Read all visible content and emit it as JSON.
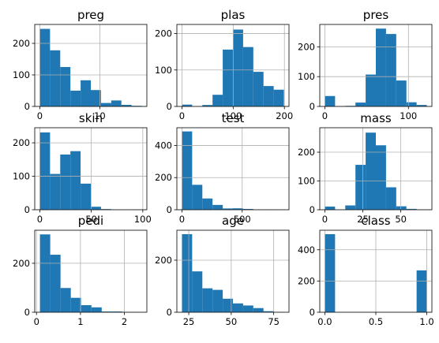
{
  "colors": {
    "bar": "#1f77b4",
    "grid": "#b0b0b0",
    "background": "#ffffff"
  },
  "chart_data": [
    {
      "type": "bar",
      "title": "preg",
      "grid": true,
      "xlim": [
        -0.85,
        17.85
      ],
      "ylim": [
        0,
        260
      ],
      "bin_edges": [
        0,
        1.7,
        3.4,
        5.1,
        6.8,
        8.5,
        10.2,
        11.9,
        13.6,
        15.3,
        17
      ],
      "values": [
        246,
        178,
        125,
        50,
        83,
        52,
        11,
        19,
        5,
        2
      ],
      "xticks": [
        0,
        10
      ],
      "xtick_labels": [
        "0",
        "10"
      ],
      "yticks": [
        0,
        100,
        200
      ],
      "ytick_labels": [
        "0",
        "100",
        "200"
      ]
    },
    {
      "type": "bar",
      "title": "plas",
      "grid": true,
      "xlim": [
        -9.95,
        208.95
      ],
      "ylim": [
        0,
        225
      ],
      "bin_edges": [
        0,
        19.9,
        39.8,
        59.7,
        79.6,
        99.5,
        119.4,
        139.3,
        159.2,
        179.1,
        199
      ],
      "values": [
        5,
        0,
        4,
        32,
        156,
        211,
        163,
        95,
        56,
        46
      ],
      "xticks": [
        0,
        100,
        200
      ],
      "xtick_labels": [
        "0",
        "100",
        "200"
      ],
      "yticks": [
        0,
        100,
        200
      ],
      "ytick_labels": [
        "0",
        "100",
        "200"
      ]
    },
    {
      "type": "bar",
      "title": "pres",
      "grid": true,
      "xlim": [
        -6.1,
        128.1
      ],
      "ylim": [
        0,
        275
      ],
      "bin_edges": [
        0,
        12.2,
        24.4,
        36.6,
        48.8,
        61,
        73.2,
        85.4,
        97.6,
        109.8,
        122
      ],
      "values": [
        35,
        1,
        2,
        13,
        107,
        261,
        243,
        87,
        14,
        5
      ],
      "xticks": [
        0,
        100
      ],
      "xtick_labels": [
        "0",
        "100"
      ],
      "yticks": [
        0,
        100,
        200
      ],
      "ytick_labels": [
        "0",
        "100",
        "200"
      ]
    },
    {
      "type": "bar",
      "title": "skin",
      "grid": true,
      "xlim": [
        -4.95,
        103.95
      ],
      "ylim": [
        0,
        245
      ],
      "bin_edges": [
        0,
        9.9,
        19.8,
        29.7,
        39.6,
        49.5,
        59.4,
        69.3,
        79.2,
        89.1,
        99
      ],
      "values": [
        231,
        107,
        165,
        175,
        78,
        9,
        2,
        0,
        0,
        1
      ],
      "xticks": [
        0,
        50,
        100
      ],
      "xtick_labels": [
        "0",
        "50",
        "100"
      ],
      "yticks": [
        0,
        100,
        200
      ],
      "ytick_labels": [
        "0",
        "100",
        "200"
      ]
    },
    {
      "type": "bar",
      "title": "test",
      "grid": true,
      "xlim": [
        -42.3,
        888.3
      ],
      "ylim": [
        0,
        510
      ],
      "bin_edges": [
        0,
        84.6,
        169.2,
        253.8,
        338.4,
        423,
        507.6,
        592.2,
        676.8,
        761.4,
        846
      ],
      "values": [
        487,
        155,
        70,
        30,
        8,
        9,
        5,
        1,
        2,
        1
      ],
      "xticks": [
        0,
        500
      ],
      "xtick_labels": [
        "0",
        "500"
      ],
      "yticks": [
        0,
        200,
        400
      ],
      "ytick_labels": [
        "0",
        "200",
        "400"
      ]
    },
    {
      "type": "bar",
      "title": "mass",
      "grid": true,
      "xlim": [
        -3.355,
        70.455
      ],
      "ylim": [
        0,
        285
      ],
      "bin_edges": [
        0,
        6.71,
        13.42,
        20.13,
        26.84,
        33.55,
        40.26,
        46.97,
        53.68,
        60.39,
        67.1
      ],
      "values": [
        11,
        0,
        15,
        156,
        268,
        224,
        78,
        12,
        3,
        1
      ],
      "xticks": [
        0,
        25,
        50
      ],
      "xtick_labels": [
        "0",
        "25",
        "50"
      ],
      "yticks": [
        0,
        100,
        200
      ],
      "ytick_labels": [
        "0",
        "100",
        "200"
      ]
    },
    {
      "type": "bar",
      "title": "pedi",
      "grid": true,
      "xlim": [
        -0.04,
        2.51
      ],
      "ylim": [
        0,
        335
      ],
      "bin_edges": [
        0.078,
        0.3122,
        0.5464,
        0.7806,
        1.0148,
        1.249,
        1.4832,
        1.7174,
        1.9516,
        2.1858,
        2.42
      ],
      "values": [
        318,
        235,
        99,
        59,
        29,
        20,
        3,
        3,
        1,
        1
      ],
      "xticks": [
        0,
        1,
        2
      ],
      "xtick_labels": [
        "0",
        "1",
        "2"
      ],
      "yticks": [
        0,
        200
      ],
      "ytick_labels": [
        "0",
        "200"
      ]
    },
    {
      "type": "bar",
      "title": "age",
      "grid": true,
      "xlim": [
        18,
        84
      ],
      "ylim": [
        0,
        315
      ],
      "bin_edges": [
        21,
        27,
        33,
        39,
        45,
        51,
        57,
        63,
        69,
        75,
        81
      ],
      "values": [
        300,
        157,
        92,
        86,
        52,
        34,
        26,
        16,
        4,
        1
      ],
      "xticks": [
        25,
        50,
        75
      ],
      "xtick_labels": [
        "25",
        "50",
        "75"
      ],
      "yticks": [
        0,
        200
      ],
      "ytick_labels": [
        "0",
        "200"
      ]
    },
    {
      "type": "bar",
      "title": "class",
      "grid": true,
      "xlim": [
        -0.05,
        1.05
      ],
      "ylim": [
        0,
        525
      ],
      "bin_edges": [
        0,
        0.1,
        0.2,
        0.3,
        0.4,
        0.5,
        0.6,
        0.7,
        0.8,
        0.9,
        1
      ],
      "values": [
        500,
        0,
        0,
        0,
        0,
        0,
        0,
        0,
        0,
        268
      ],
      "xticks": [
        0,
        0.5,
        1
      ],
      "xtick_labels": [
        "0.0",
        "0.5",
        "1.0"
      ],
      "yticks": [
        0,
        200,
        400
      ],
      "ytick_labels": [
        "0",
        "200",
        "400"
      ]
    }
  ]
}
